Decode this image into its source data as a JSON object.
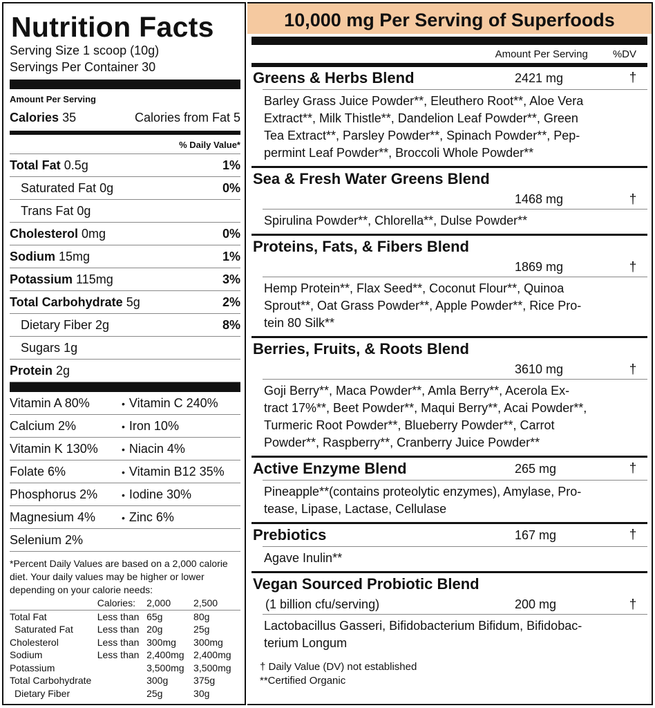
{
  "left": {
    "title": "Nutrition Facts",
    "serving_size": "Serving Size 1 scoop (10g)",
    "servings_per_container": "Servings Per Container 30",
    "amount_per_serving": "Amount Per Serving",
    "calories_label": "Calories",
    "calories_value": "35",
    "calories_from_fat": "Calories from Fat 5",
    "dv_header": "% Daily Value*",
    "rows": [
      {
        "name": "Total Fat",
        "value": "0.5g",
        "pct": "1%",
        "bold": true,
        "indent": false
      },
      {
        "name": "Saturated Fat",
        "value": "0g",
        "pct": "0%",
        "bold": false,
        "indent": true
      },
      {
        "name": "Trans Fat",
        "value": "0g",
        "pct": "",
        "bold": false,
        "indent": true
      },
      {
        "name": "Cholesterol",
        "value": "0mg",
        "pct": "0%",
        "bold": true,
        "indent": false
      },
      {
        "name": "Sodium",
        "value": "15mg",
        "pct": "1%",
        "bold": true,
        "indent": false
      },
      {
        "name": "Potassium",
        "value": "115mg",
        "pct": "3%",
        "bold": true,
        "indent": false
      },
      {
        "name": "Total Carbohydrate",
        "value": "5g",
        "pct": "2%",
        "bold": true,
        "indent": false
      },
      {
        "name": "Dietary Fiber",
        "value": "2g",
        "pct": "8%",
        "bold": false,
        "indent": true
      },
      {
        "name": "Sugars",
        "value": "1g",
        "pct": "",
        "bold": false,
        "indent": true
      },
      {
        "name": "Protein",
        "value": "2g",
        "pct": "",
        "bold": true,
        "indent": false
      }
    ],
    "vitamins": [
      [
        "Vitamin A 80%",
        "Vitamin C 240%"
      ],
      [
        "Calcium 2%",
        "Iron 10%"
      ],
      [
        "Vitamin K 130%",
        "Niacin 4%"
      ],
      [
        "Folate 6%",
        "Vitamin B12 35%"
      ],
      [
        "Phosphorus 2%",
        "Iodine 30%"
      ],
      [
        "Magnesium 4%",
        "Zinc 6%"
      ],
      [
        "Selenium 2%",
        ""
      ]
    ],
    "footnote": "*Percent Daily Values are based on a 2,000 calorie diet. Your daily values may be higher or lower depending on your calorie needs:",
    "dv_table": {
      "header": [
        "",
        "Calories:",
        "2,000",
        "2,500"
      ],
      "rows": [
        [
          "Total Fat",
          "Less than",
          "65g",
          "80g"
        ],
        [
          "Saturated Fat",
          "Less than",
          "20g",
          "25g"
        ],
        [
          "Cholesterol",
          "Less than",
          "300mg",
          "300mg"
        ],
        [
          "Sodium",
          "Less than",
          "2,400mg",
          "2,400mg"
        ],
        [
          "Potassium",
          "",
          "3,500mg",
          "3,500mg"
        ],
        [
          "Total Carbohydrate",
          "",
          "300g",
          "375g"
        ],
        [
          "Dietary Fiber",
          "",
          "25g",
          "30g"
        ]
      ]
    }
  },
  "right": {
    "header": "10,000 mg Per Serving of Superfoods",
    "header_color": "#f5c9a0",
    "amount_per_serving": "Amount Per Serving",
    "dv": "%DV",
    "sections": [
      {
        "title": "Greens & Herbs Blend",
        "amount": "2421 mg",
        "dv": "†",
        "inline": true,
        "sub": "",
        "lines": [
          "Barley Grass Juice Powder**, Eleuthero Root**, Aloe Vera",
          "Extract**, Milk Thistle**, Dandelion Leaf Powder**, Green",
          "Tea Extract**, Parsley Powder**, Spinach Powder**, Pep-",
          "permint Leaf Powder**, Broccoli Whole Powder**"
        ]
      },
      {
        "title": "Sea & Fresh Water Greens Blend",
        "amount": "1468 mg",
        "dv": "†",
        "inline": false,
        "sub": "",
        "lines": [
          "Spirulina Powder**, Chlorella**, Dulse Powder**"
        ]
      },
      {
        "title": "Proteins, Fats, & Fibers Blend",
        "amount": "1869 mg",
        "dv": "†",
        "inline": false,
        "sub": "",
        "lines": [
          "Hemp Protein**, Flax Seed**, Coconut Flour**, Quinoa",
          "Sprout**, Oat Grass Powder**, Apple Powder**, Rice Pro-",
          "tein 80 Silk**"
        ]
      },
      {
        "title": "Berries, Fruits, & Roots Blend",
        "amount": "3610 mg",
        "dv": "†",
        "inline": false,
        "sub": "",
        "lines": [
          "Goji Berry**, Maca Powder**, Amla Berry**, Acerola Ex-",
          "tract 17%**, Beet Powder**, Maqui Berry**, Acai Powder**,",
          "Turmeric Root Powder**, Blueberry Powder**, Carrot",
          "Powder**, Raspberry**, Cranberry Juice Powder**"
        ]
      },
      {
        "title": "Active Enzyme Blend",
        "amount": "265 mg",
        "dv": "†",
        "inline": true,
        "sub": "",
        "lines": [
          "Pineapple**(contains proteolytic enzymes), Amylase, Pro-",
          "tease, Lipase, Lactase, Cellulase"
        ]
      },
      {
        "title": "Prebiotics",
        "amount": "167 mg",
        "dv": "†",
        "inline": true,
        "sub": "",
        "lines": [
          "Agave Inulin**"
        ]
      },
      {
        "title": "Vegan Sourced Probiotic Blend",
        "amount": "200 mg",
        "dv": "†",
        "inline": false,
        "sub": "(1 billion cfu/serving)",
        "lines": [
          "Lactobacillus Gasseri, Bifidobacterium Bifidum, Bifidobac-",
          "terium Longum"
        ]
      }
    ],
    "footer": [
      "† Daily Value (DV) not established",
      "**Certified Organic"
    ]
  }
}
